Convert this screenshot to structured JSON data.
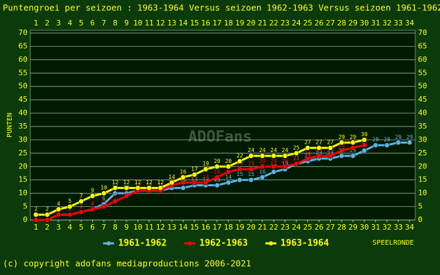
{
  "chart_data": {
    "type": "line",
    "title": "Puntengroei per seizoen : 1963-1964 Versus seizoen 1962-1963 Versus seizoen 1961-1962",
    "y_label": "PUNTEN",
    "x_label": "SPEELRONDE",
    "watermark": "ADOFans",
    "footer": "(c) copyright adofans mediaproductions 2006-2021",
    "x": [
      1,
      2,
      3,
      4,
      5,
      6,
      7,
      8,
      9,
      10,
      11,
      12,
      13,
      14,
      15,
      16,
      17,
      18,
      19,
      20,
      21,
      22,
      23,
      24,
      25,
      26,
      27,
      28,
      29,
      30,
      31,
      32,
      33,
      34
    ],
    "xlim": [
      0.5,
      34.5
    ],
    "xticks": [
      1,
      2,
      3,
      4,
      5,
      6,
      7,
      8,
      9,
      10,
      11,
      12,
      13,
      14,
      15,
      16,
      17,
      18,
      19,
      20,
      21,
      22,
      23,
      24,
      25,
      26,
      27,
      28,
      29,
      30,
      31,
      32,
      33,
      34
    ],
    "ylim": [
      0,
      70
    ],
    "yticks": [
      0,
      5,
      10,
      15,
      20,
      25,
      30,
      35,
      40,
      45,
      50,
      55,
      60,
      65,
      70
    ],
    "grid": true,
    "legend": "bottom",
    "series": [
      {
        "name": "1961-1962",
        "color": "#5ab4e6",
        "values": [
          0,
          0,
          2,
          2,
          3,
          4,
          6,
          10,
          10,
          11,
          11,
          11,
          12,
          12,
          13,
          13,
          13,
          14,
          15,
          15,
          16,
          18,
          19,
          21,
          22,
          23,
          23,
          24,
          24,
          26,
          28,
          28,
          29,
          29
        ]
      },
      {
        "name": "1962-1963",
        "color": "#ff0000",
        "values": [
          0,
          0,
          2,
          2,
          3,
          4,
          5,
          7,
          9,
          11,
          11,
          11,
          13,
          14,
          14,
          14,
          16,
          18,
          19,
          19,
          20,
          20,
          20,
          21,
          23,
          24,
          24,
          26,
          27,
          28,
          null,
          null,
          null,
          null
        ]
      },
      {
        "name": "1963-1964",
        "color": "#ffff00",
        "values": [
          2,
          2,
          4,
          5,
          7,
          9,
          10,
          12,
          12,
          12,
          12,
          12,
          14,
          16,
          17,
          19,
          20,
          20,
          22,
          24,
          24,
          24,
          24,
          25,
          27,
          27,
          27,
          29,
          29,
          30,
          null,
          null,
          null,
          null
        ]
      }
    ]
  }
}
